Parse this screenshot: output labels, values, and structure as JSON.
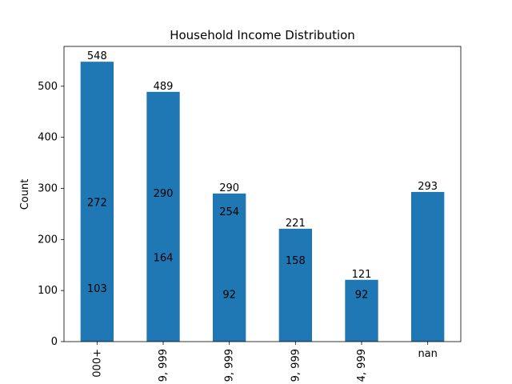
{
  "chart_data": {
    "type": "bar",
    "title": "Household Income Distribution",
    "xlabel": "",
    "ylabel": "Count",
    "categories": [
      "000+",
      "9, 999",
      "9, 999",
      "9, 999",
      "4, 999",
      "nan"
    ],
    "values": [
      548,
      489,
      290,
      221,
      121,
      293
    ],
    "ylim": [
      0,
      578
    ],
    "yticks": [
      0,
      100,
      200,
      300,
      400,
      500
    ],
    "bar_color": "#1f77b4",
    "grid": false,
    "inner_labels": [
      {
        "category_index": 0,
        "value": 272,
        "text": "272"
      },
      {
        "category_index": 0,
        "value": 103,
        "text": "103"
      },
      {
        "category_index": 1,
        "value": 290,
        "text": "290"
      },
      {
        "category_index": 1,
        "value": 164,
        "text": "164"
      },
      {
        "category_index": 2,
        "value": 254,
        "text": "254"
      },
      {
        "category_index": 2,
        "value": 92,
        "text": "92"
      },
      {
        "category_index": 3,
        "value": 158,
        "text": "158"
      },
      {
        "category_index": 4,
        "value": 92,
        "text": "92"
      }
    ]
  }
}
